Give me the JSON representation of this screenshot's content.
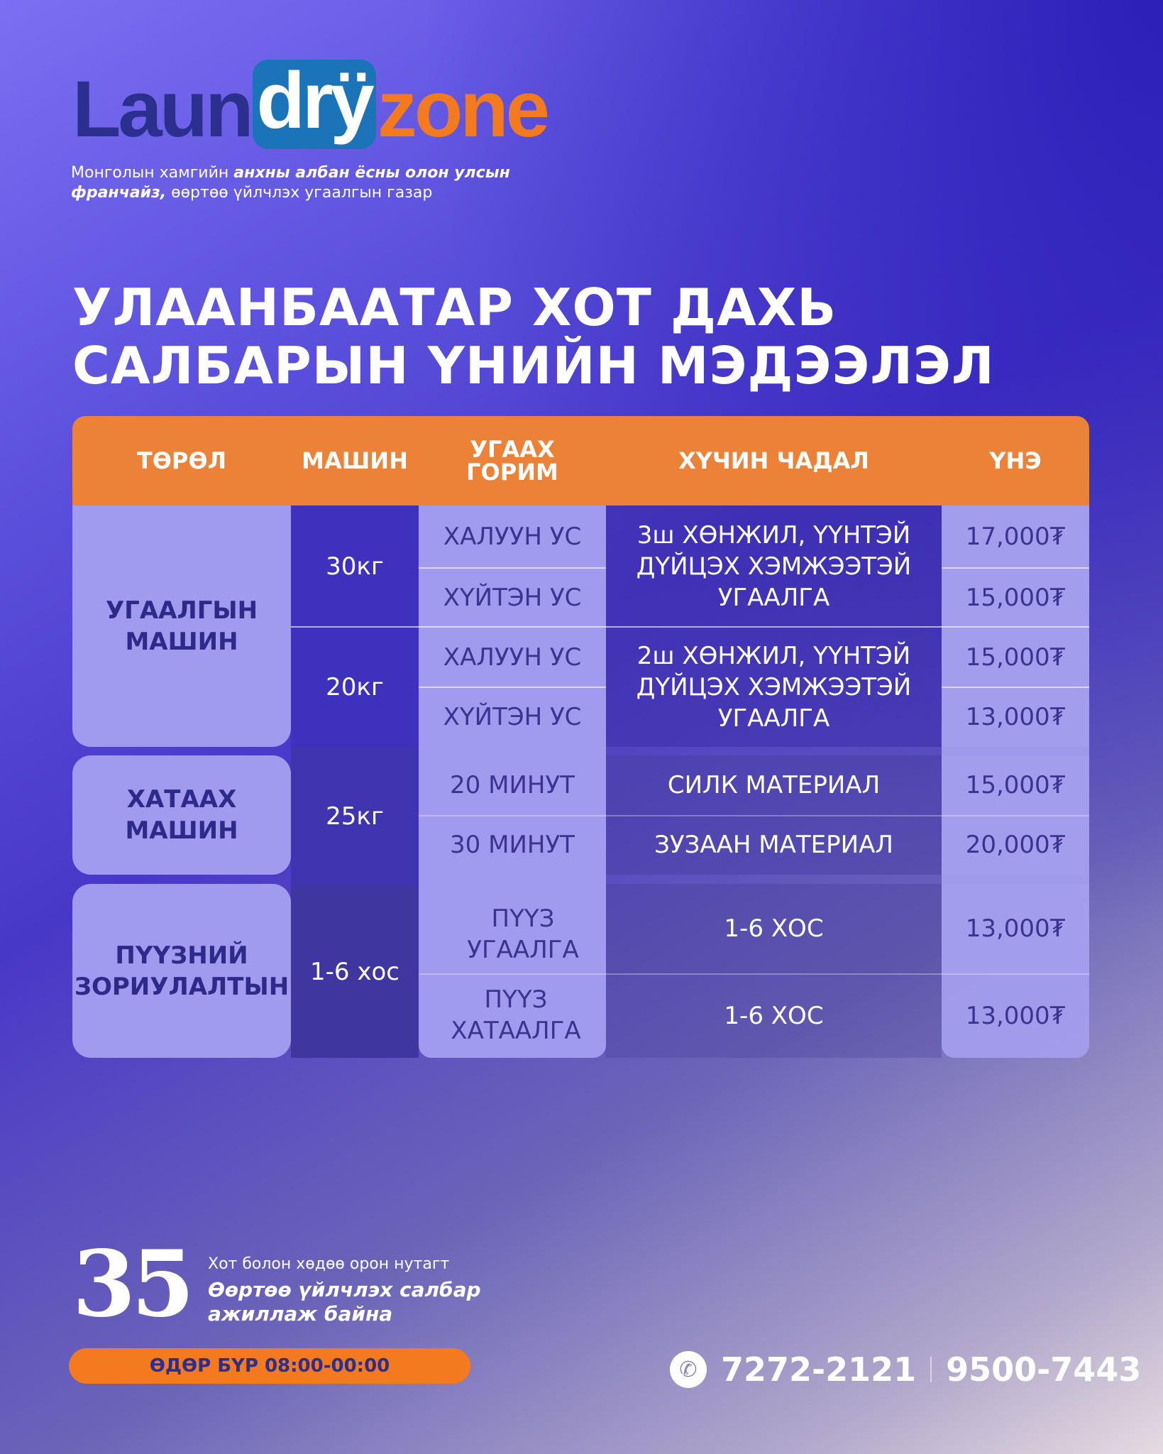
{
  "brand": {
    "part1": "Laun",
    "part2": "drÿ",
    "part3": "zone"
  },
  "tagline": {
    "t1": "Монголын хамгийн ",
    "b1": "анхны албан ёсны олон улсын франчайз,",
    "t2": " өөртөө үйлчлэх угаалгын газар"
  },
  "title": {
    "line1": "УЛААНБААТАР ХОТ ДАХЬ",
    "line2": "САЛБАРЫН ҮНИЙН МЭДЭЭЛЭЛ"
  },
  "table": {
    "headers": [
      "ТӨРӨЛ",
      "МАШИН",
      "УГААХ ГОРИМ",
      "ХҮЧИН ЧАДАЛ",
      "ҮНЭ"
    ],
    "types": [
      "УГААЛГЫН МАШИН",
      "ХАТААХ МАШИН",
      "ПҮҮЗНИЙ ЗОРИУЛАЛТЫН"
    ],
    "machines": [
      "30кг",
      "20кг",
      "25кг",
      "1-6 хос"
    ],
    "modes": [
      "ХАЛУУН УС",
      "ХҮЙТЭН УС",
      "ХАЛУУН УС",
      "ХҮЙТЭН УС",
      "20 МИНУТ",
      "30 МИНУТ",
      "ПҮҮЗ УГААЛГА",
      "ПҮҮЗ ХАТААЛГА"
    ],
    "capacities": [
      "3ш ХӨНЖИЛ, ҮҮНТЭЙ ДҮЙЦЭХ ХЭМЖЭЭТЭЙ УГААЛГА",
      "2ш ХӨНЖИЛ, ҮҮНТЭЙ ДҮЙЦЭХ ХЭМЖЭЭТЭЙ УГААЛГА",
      "СИЛК МАТЕРИАЛ",
      "ЗУЗААН МАТЕРИАЛ",
      "1-6 ХОС",
      "1-6 ХОС"
    ],
    "prices": [
      "17,000₮",
      "15,000₮",
      "15,000₮",
      "13,000₮",
      "15,000₮",
      "20,000₮",
      "13,000₮",
      "13,000₮"
    ]
  },
  "footer": {
    "count": "35",
    "sub1": "Хот болон хөдөө орон нутагт",
    "sub2": "Өөртөө үйлчлэх салбар ажиллаж байна",
    "hours": "ӨДӨР БҮР 08:00-00:00",
    "phone1": "7272-2121",
    "phone2": "9500-7443"
  },
  "colors": {
    "orange": "#eb8238",
    "navy": "#2c2f8e",
    "lavender": "#a19bef",
    "blue": "#3e31be"
  }
}
